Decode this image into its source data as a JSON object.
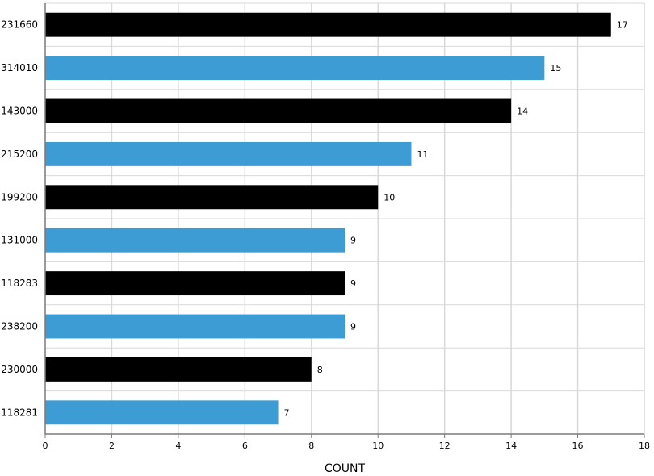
{
  "chart_data": {
    "type": "bar",
    "orientation": "horizontal",
    "categories": [
      "231660",
      "314010",
      "143000",
      "215200",
      "199200",
      "131000",
      "118283",
      "238200",
      "230000",
      "118281"
    ],
    "values": [
      17,
      15,
      14,
      11,
      10,
      9,
      9,
      9,
      8,
      7
    ],
    "bar_colors": [
      "#000000",
      "#3d9cd3",
      "#000000",
      "#3d9cd3",
      "#000000",
      "#3d9cd3",
      "#000000",
      "#3d9cd3",
      "#000000",
      "#3d9cd3"
    ],
    "xlabel": "COUNT",
    "ylabel": "",
    "xlim": [
      0,
      18
    ],
    "x_ticks": [
      0,
      2,
      4,
      6,
      8,
      10,
      12,
      14,
      16,
      18
    ],
    "grid": true,
    "grid_color": "#d9d9d9",
    "axis_color": "#7a7a7a",
    "data_labels": true
  }
}
